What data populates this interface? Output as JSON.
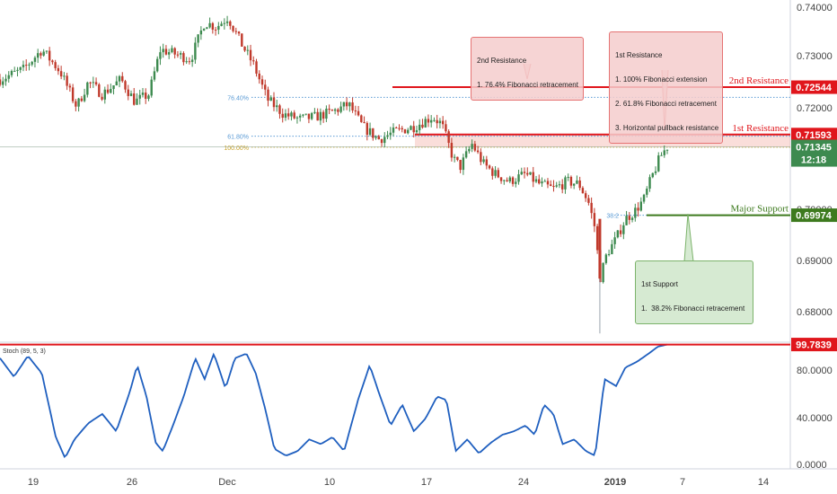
{
  "chart_data": {
    "type": "candlestick",
    "price_axis": {
      "ticks": [
        "0.74000",
        "0.73000",
        "0.72000",
        "0.71000",
        "0.70000",
        "0.69000",
        "0.68000"
      ],
      "ylim": [
        0.6755,
        0.7415
      ]
    },
    "stoch_axis": {
      "ticks": [
        "80.0000",
        "40.0000",
        "0.0000"
      ],
      "ylim": [
        -5,
        101
      ]
    },
    "x_axis": {
      "ticks": [
        {
          "label": "19",
          "bold": false
        },
        {
          "label": "26",
          "bold": false
        },
        {
          "label": "Dec",
          "bold": false
        },
        {
          "label": "10",
          "bold": false
        },
        {
          "label": "17",
          "bold": false
        },
        {
          "label": "24",
          "bold": false
        },
        {
          "label": "2019",
          "bold": true
        },
        {
          "label": "7",
          "bold": false
        },
        {
          "label": "14",
          "bold": false
        }
      ]
    },
    "horizontal_levels": [
      {
        "name": "2nd Resistance",
        "price_label": "0.72544",
        "value": 0.72544,
        "color": "#e0161c"
      },
      {
        "name": "1st Resistance",
        "price_label": "0.71593",
        "value": 0.71593,
        "color": "#e0161c"
      },
      {
        "name": "Major Support",
        "price_label": "0.69974",
        "value": 0.69974,
        "color": "#3d7a1e"
      }
    ],
    "fibonacci": [
      {
        "label": "76.40%",
        "value": 0.7234,
        "color": "#5b9bd5"
      },
      {
        "label": "61.80%",
        "value": 0.7156,
        "color": "#5b9bd5"
      },
      {
        "label": "100.00%",
        "value": 0.7134,
        "color": "#c9a227"
      },
      {
        "label": "38.2",
        "value": 0.69974,
        "color": "#5b9bd5"
      }
    ],
    "current_price": {
      "value": 0.71345,
      "label": "0.71345",
      "countdown": "12:18",
      "color": "#3d8a4f"
    },
    "stoch": {
      "label": "Stoch (89, 5, 3)",
      "current_label": "99.7839",
      "level": 99.7839
    },
    "series": [
      {
        "name": "Price",
        "type": "candlestick",
        "anchors": [
          [
            0,
            0.727
          ],
          [
            1,
            0.729
          ],
          [
            1.8,
            0.733
          ],
          [
            2.6,
            0.7285
          ],
          [
            3.3,
            0.7215
          ],
          [
            3.8,
            0.7265
          ],
          [
            4.4,
            0.724
          ],
          [
            5.2,
            0.727
          ],
          [
            5.8,
            0.7225
          ],
          [
            6.4,
            0.724
          ],
          [
            6.9,
            0.733
          ],
          [
            7.6,
            0.732
          ],
          [
            8.2,
            0.731
          ],
          [
            8.8,
            0.7385
          ],
          [
            9.3,
            0.7375
          ],
          [
            9.8,
            0.7395
          ],
          [
            10.4,
            0.734
          ],
          [
            10.9,
            0.73
          ],
          [
            11.5,
            0.723
          ],
          [
            12.2,
            0.72
          ],
          [
            12.9,
            0.719
          ],
          [
            13.6,
            0.7195
          ],
          [
            14.3,
            0.7205
          ],
          [
            15.0,
            0.722
          ],
          [
            15.6,
            0.7175
          ],
          [
            16.3,
            0.715
          ],
          [
            17.0,
            0.7165
          ],
          [
            17.8,
            0.7175
          ],
          [
            18.6,
            0.7195
          ],
          [
            19.0,
            0.718
          ],
          [
            19.5,
            0.711
          ],
          [
            19.8,
            0.7095
          ],
          [
            20.3,
            0.714
          ],
          [
            20.8,
            0.71
          ],
          [
            21.3,
            0.708
          ],
          [
            21.9,
            0.7065
          ],
          [
            22.6,
            0.708
          ],
          [
            23.2,
            0.706
          ],
          [
            23.8,
            0.705
          ],
          [
            24.4,
            0.7065
          ],
          [
            24.9,
            0.706
          ],
          [
            25.3,
            0.7025
          ],
          [
            25.6,
            0.697
          ],
          [
            25.8,
            0.687
          ],
          [
            26.1,
            0.692
          ],
          [
            26.5,
            0.695
          ],
          [
            26.9,
            0.699
          ],
          [
            27.3,
            0.7005
          ],
          [
            27.7,
            0.703
          ],
          [
            28.0,
            0.707
          ],
          [
            28.4,
            0.7115
          ],
          [
            28.7,
            0.7135
          ]
        ],
        "day_range": [
          0,
          28.7
        ],
        "low_spike": {
          "day": 25.8,
          "value": 0.676
        }
      },
      {
        "name": "Stoch",
        "type": "line",
        "anchors": [
          [
            0,
            88
          ],
          [
            0.6,
            72
          ],
          [
            1.2,
            90
          ],
          [
            1.8,
            75
          ],
          [
            2.4,
            20
          ],
          [
            2.8,
            2
          ],
          [
            3.2,
            18
          ],
          [
            3.8,
            32
          ],
          [
            4.4,
            40
          ],
          [
            5.0,
            25
          ],
          [
            5.6,
            60
          ],
          [
            5.9,
            82
          ],
          [
            6.3,
            55
          ],
          [
            6.7,
            15
          ],
          [
            7.0,
            8
          ],
          [
            7.4,
            28
          ],
          [
            7.9,
            55
          ],
          [
            8.4,
            88
          ],
          [
            8.8,
            70
          ],
          [
            9.2,
            92
          ],
          [
            9.7,
            62
          ],
          [
            10.1,
            88
          ],
          [
            10.6,
            92
          ],
          [
            11.0,
            75
          ],
          [
            11.4,
            45
          ],
          [
            11.8,
            10
          ],
          [
            12.3,
            4
          ],
          [
            12.8,
            8
          ],
          [
            13.3,
            18
          ],
          [
            13.8,
            14
          ],
          [
            14.3,
            20
          ],
          [
            14.8,
            8
          ],
          [
            15.4,
            52
          ],
          [
            15.9,
            82
          ],
          [
            16.3,
            58
          ],
          [
            16.8,
            30
          ],
          [
            17.3,
            48
          ],
          [
            17.8,
            25
          ],
          [
            18.3,
            36
          ],
          [
            18.8,
            55
          ],
          [
            19.2,
            52
          ],
          [
            19.6,
            8
          ],
          [
            20.1,
            18
          ],
          [
            20.6,
            6
          ],
          [
            21.1,
            15
          ],
          [
            21.6,
            22
          ],
          [
            22.1,
            25
          ],
          [
            22.6,
            30
          ],
          [
            23.0,
            22
          ],
          [
            23.4,
            48
          ],
          [
            23.8,
            40
          ],
          [
            24.2,
            14
          ],
          [
            24.7,
            18
          ],
          [
            25.2,
            8
          ],
          [
            25.6,
            4
          ],
          [
            26.0,
            70
          ],
          [
            26.5,
            64
          ],
          [
            26.9,
            80
          ],
          [
            27.4,
            85
          ],
          [
            27.9,
            92
          ],
          [
            28.3,
            98
          ],
          [
            28.7,
            99.8
          ]
        ]
      }
    ]
  },
  "annotations": [
    {
      "key": "ann-2nd-resistance",
      "title": "2nd Resistance",
      "lines": [
        "1. 76.4% Fibonacci retracement"
      ]
    },
    {
      "key": "ann-1st-resistance",
      "title": "1st Resistance",
      "lines": [
        "1. 100% Fibonacci extension",
        "2. 61.8% Fibonacci retracement",
        "3. Horizontal pullback resistance"
      ]
    },
    {
      "key": "ann-1st-support",
      "title": "1st Support",
      "lines": [
        "1.  38.2% Fibonacci retracement"
      ]
    }
  ],
  "colors": {
    "bull": "#3d8a4f",
    "bear": "#c0392b",
    "stoch_line": "#1f5fbf",
    "level_red": "#e0161c",
    "support_green": "#3d7a1e",
    "zone_red": "rgba(240,160,150,0.35)"
  }
}
